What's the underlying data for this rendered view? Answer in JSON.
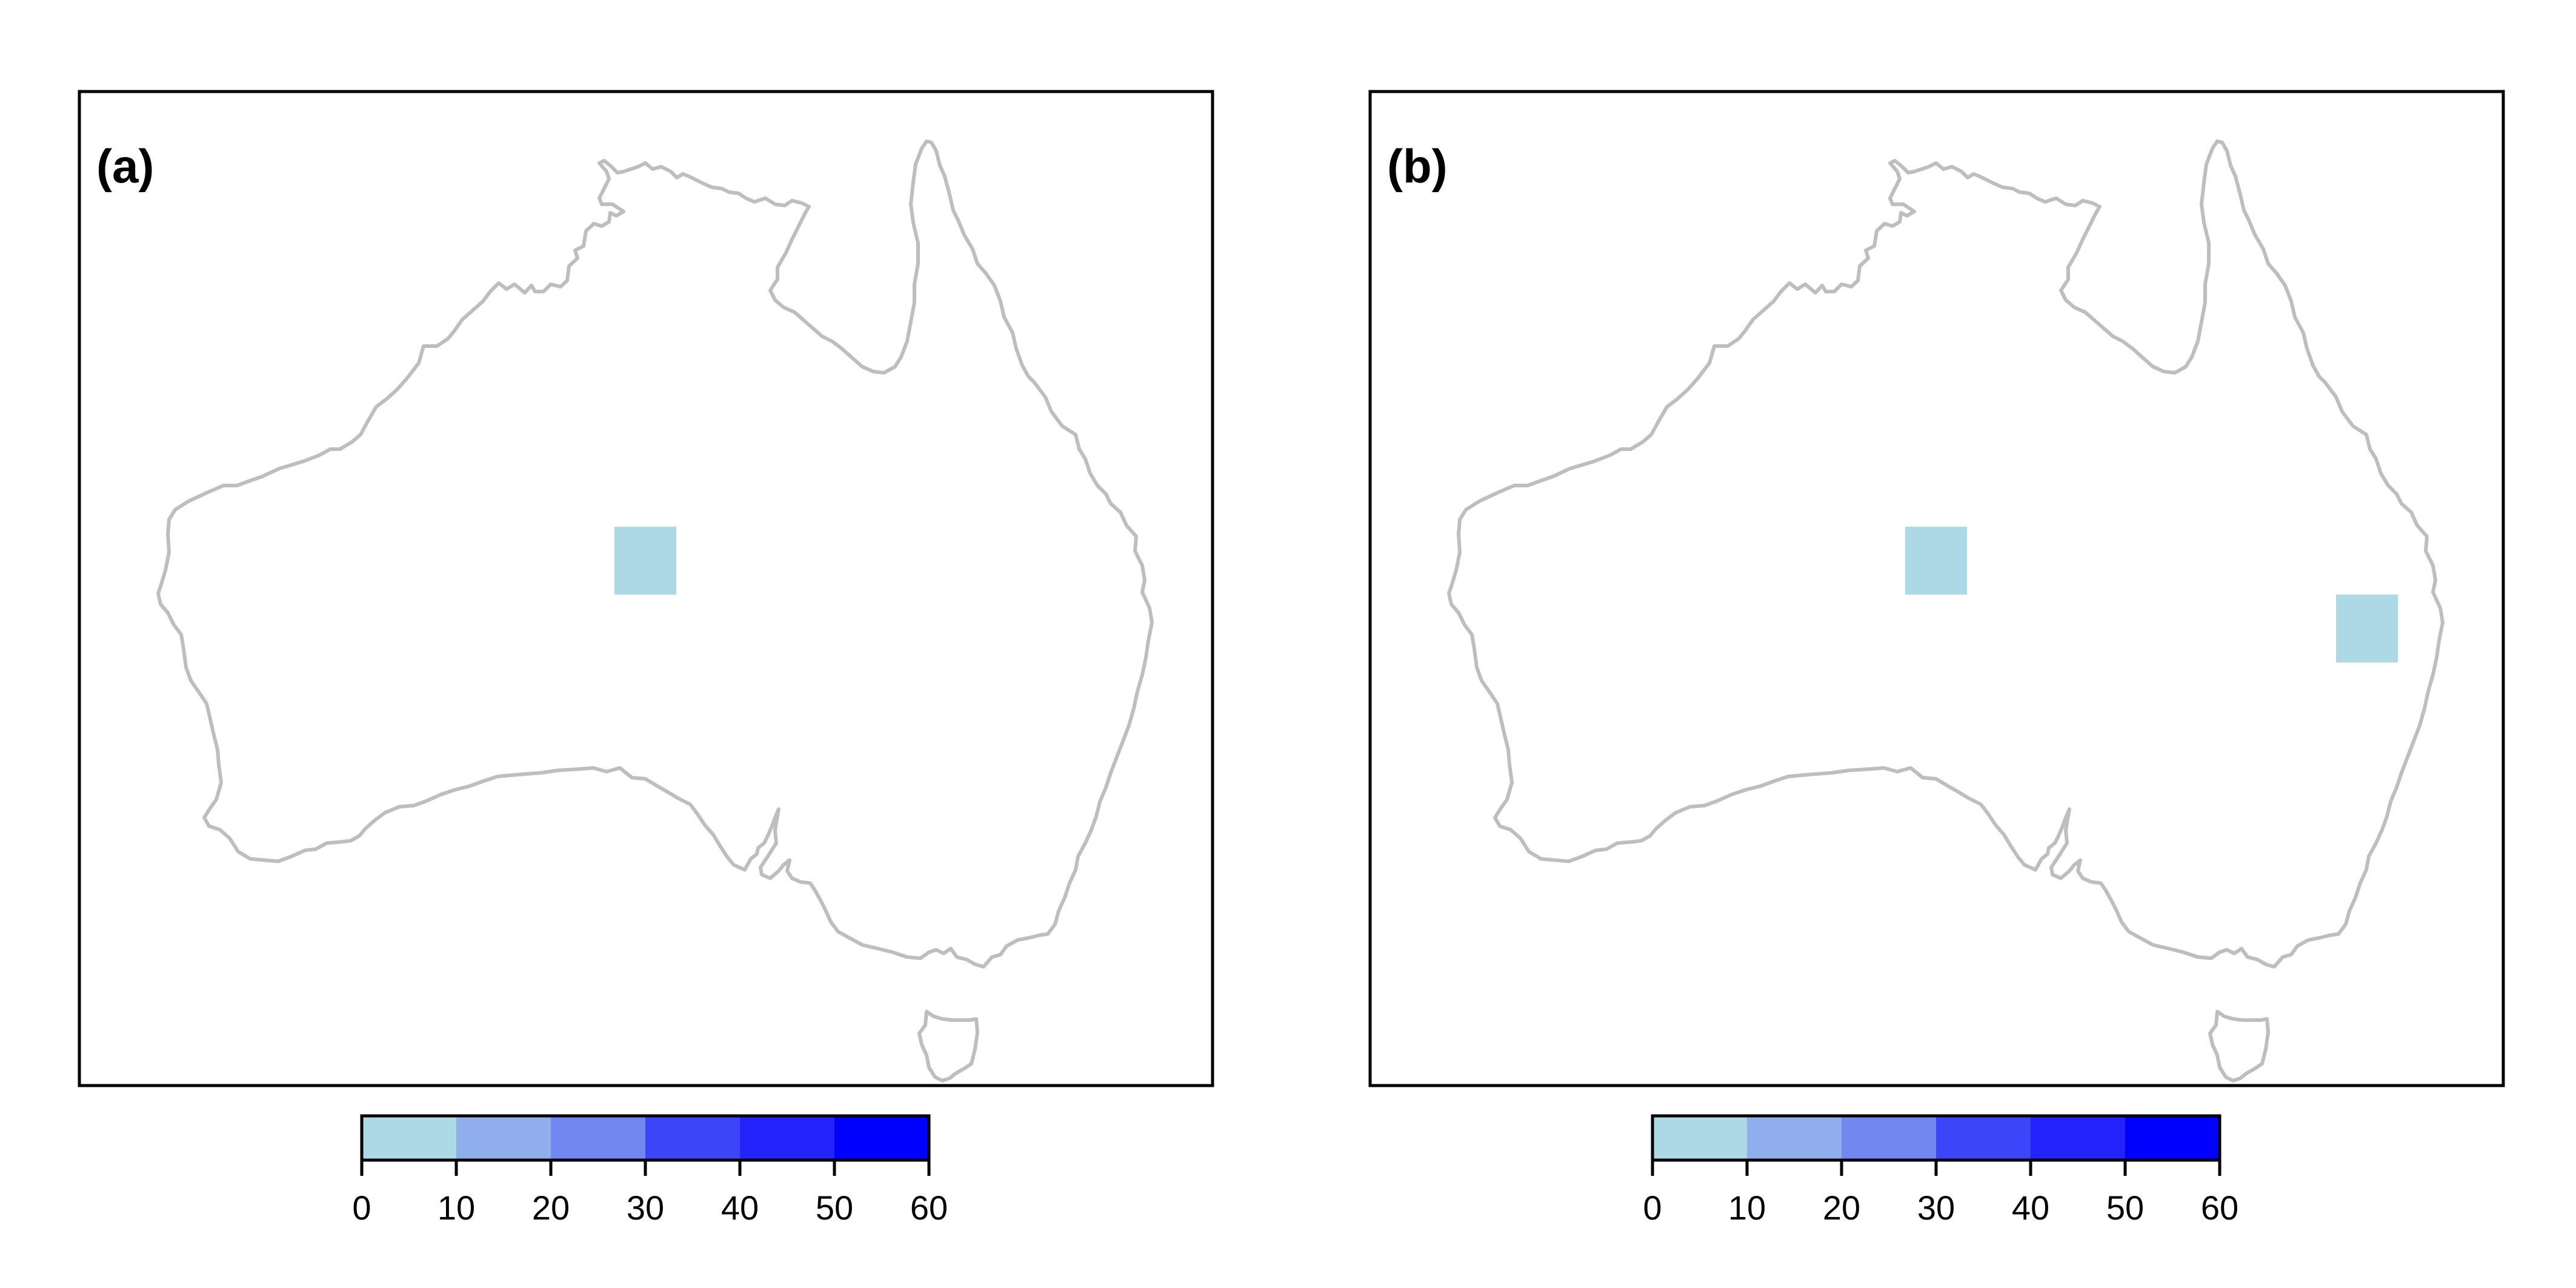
{
  "colors": {
    "frame": "#000000",
    "coastline": "#bebebe",
    "background": "#ffffff"
  },
  "legend": {
    "ticks": [
      "0",
      "10",
      "20",
      "30",
      "40",
      "50",
      "60"
    ],
    "bins": [
      {
        "from": 0,
        "to": 10,
        "color": "#add8e6"
      },
      {
        "from": 10,
        "to": 20,
        "color": "#91aeec"
      },
      {
        "from": 20,
        "to": 30,
        "color": "#7288f0"
      },
      {
        "from": 30,
        "to": 40,
        "color": "#3c46f8"
      },
      {
        "from": 40,
        "to": 50,
        "color": "#2324fb"
      },
      {
        "from": 50,
        "to": 60,
        "color": "#0000ff"
      }
    ]
  },
  "panels": [
    {
      "label": "(a)",
      "cells": [
        {
          "location": "central Australia",
          "value_bin": "0-10",
          "color": "#add8e6"
        }
      ]
    },
    {
      "label": "(b)",
      "cells": [
        {
          "location": "central Australia",
          "value_bin": "0-10",
          "color": "#add8e6"
        },
        {
          "location": "eastern Queensland coast",
          "value_bin": "0-10",
          "color": "#add8e6"
        }
      ]
    }
  ]
}
